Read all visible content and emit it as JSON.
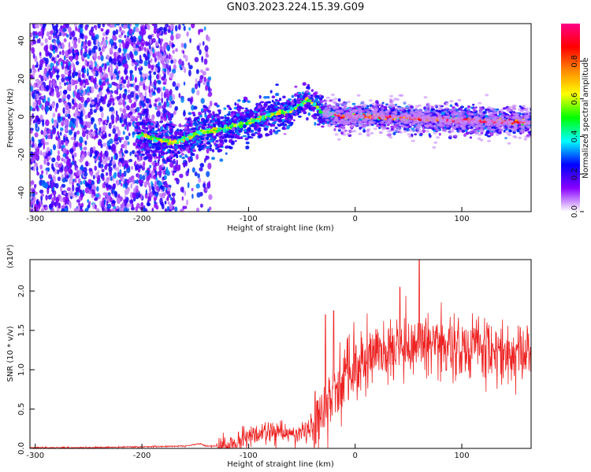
{
  "title": "GN03.2023.224.15.39.G09",
  "colors": {
    "signal": "#ee2222",
    "axis": "#000000"
  },
  "chart_data": [
    {
      "type": "heatmap",
      "title": "",
      "xlabel": "Height of straight line (km)",
      "ylabel": "Frequency (Hz)",
      "xlim": [
        -305,
        165
      ],
      "ylim": [
        -50,
        49
      ],
      "xticks": [
        -300,
        -200,
        -100,
        0,
        100
      ],
      "yticks": [
        -40,
        -20,
        0,
        20,
        40
      ],
      "colorbar": {
        "label": "Normalized spectral amplitude",
        "range": [
          0,
          1
        ],
        "ticks": [
          "0.0",
          "0.2",
          "0.4",
          "0.6",
          "0.8"
        ],
        "stops": [
          "#ffffff",
          "#8800ff",
          "#0000ff",
          "#00ffff",
          "#00ff00",
          "#ffff00",
          "#ff8800",
          "#ff0000",
          "#ff0088"
        ]
      },
      "ridge": {
        "description_points_x": [
          -200,
          -170,
          -150,
          -120,
          -100,
          -80,
          -60,
          -45,
          -30,
          -10,
          20,
          60,
          100,
          160
        ],
        "description_points_y": [
          -10,
          -14,
          -9,
          -6,
          -3,
          1,
          3,
          9,
          2,
          0,
          0,
          -1,
          -2,
          -3
        ]
      }
    },
    {
      "type": "line",
      "title": "",
      "xlabel": "Height of straight line (km)",
      "ylabel": "SNR (10 * v/v)",
      "yunit": "(x10⁴)",
      "xlim": [
        -305,
        165
      ],
      "ylim": [
        0,
        2.4
      ],
      "xticks": [
        -300,
        -200,
        -100,
        0,
        100
      ],
      "yticks": [
        "0.0",
        "0.5",
        "1.0",
        "1.5",
        "2.0"
      ],
      "envelope": {
        "x": [
          -305,
          -250,
          -200,
          -160,
          -145,
          -140,
          -120,
          -110,
          -100,
          -80,
          -60,
          -50,
          -40,
          -30,
          -20,
          -10,
          0,
          20,
          40,
          60,
          80,
          100,
          120,
          140,
          165
        ],
        "y": [
          0.01,
          0.01,
          0.02,
          0.03,
          0.06,
          0.03,
          0.03,
          0.08,
          0.15,
          0.22,
          0.18,
          0.2,
          0.3,
          0.5,
          0.75,
          0.85,
          1.0,
          1.2,
          1.25,
          1.3,
          1.3,
          1.25,
          1.22,
          1.2,
          1.2
        ]
      },
      "spikes": [
        {
          "x": -28,
          "y": 1.7
        },
        {
          "x": -20,
          "y": 1.75
        },
        {
          "x": 42,
          "y": 2.05
        },
        {
          "x": 60,
          "y": 2.4
        }
      ]
    }
  ]
}
